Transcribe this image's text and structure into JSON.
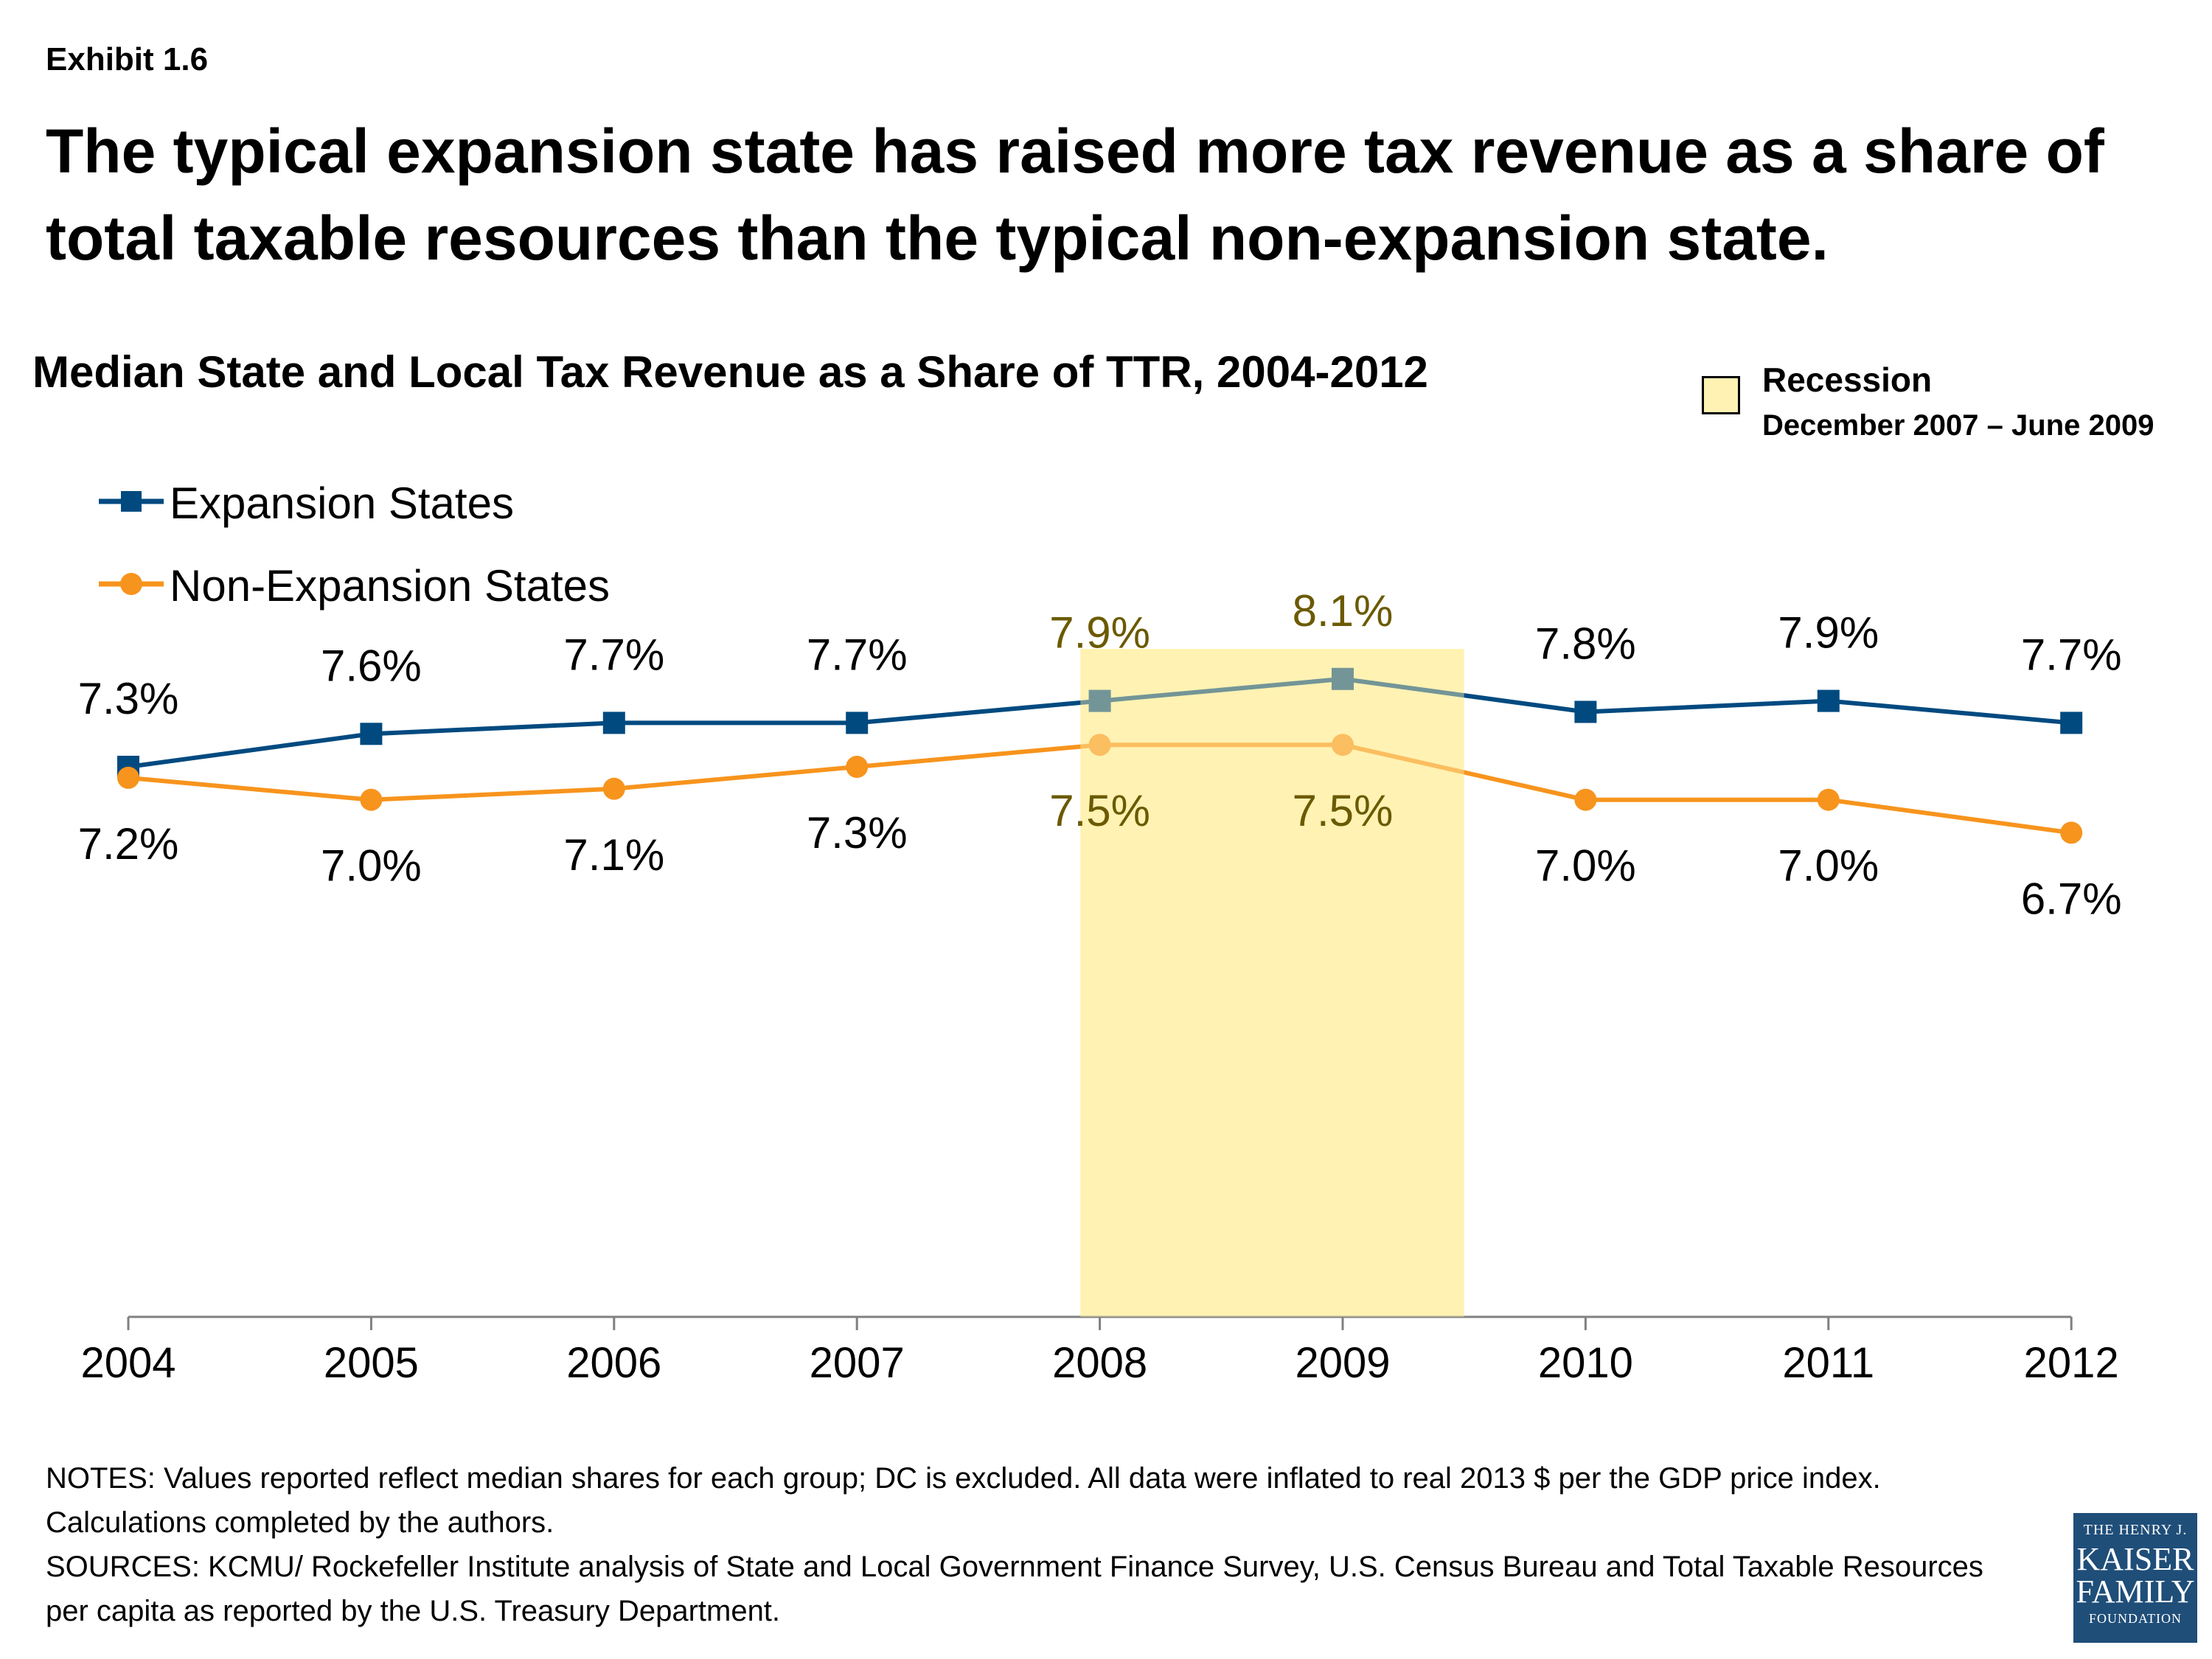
{
  "exhibit_label": "Exhibit 1.6",
  "headline": "The typical expansion state has raised more tax revenue as a share of total taxable resources than the typical non-expansion state.",
  "notes": {
    "line1": "NOTES: Values reported reflect median shares for each group; DC is excluded. All data were inflated to real 2013 $ per the GDP price index. Calculations completed by the authors.",
    "line2": "SOURCES: KCMU/ Rockefeller Institute analysis of State and Local Government Finance Survey, U.S. Census Bureau and Total Taxable Resources per capita as reported by the U.S. Treasury Department."
  },
  "logo": {
    "line1": "THE HENRY J.",
    "line2": "KAISER",
    "line3": "FAMILY",
    "line4": "FOUNDATION"
  },
  "chart_data": {
    "type": "line",
    "title": "Median State and Local Tax Revenue as a Share of TTR, 2004-2012",
    "categories": [
      "2004",
      "2005",
      "2006",
      "2007",
      "2008",
      "2009",
      "2010",
      "2011",
      "2012"
    ],
    "series": [
      {
        "name": "Expansion States",
        "values": [
          7.3,
          7.6,
          7.7,
          7.7,
          7.9,
          8.1,
          7.8,
          7.9,
          7.7
        ],
        "labels": [
          "7.3%",
          "7.6%",
          "7.7%",
          "7.7%",
          "7.9%",
          "8.1%",
          "7.8%",
          "7.9%",
          "7.7%"
        ],
        "color": "#004a80",
        "marker": "square"
      },
      {
        "name": "Non-Expansion States",
        "values": [
          7.2,
          7.0,
          7.1,
          7.3,
          7.5,
          7.5,
          7.0,
          7.0,
          6.7
        ],
        "labels": [
          "7.2%",
          "7.0%",
          "7.1%",
          "7.3%",
          "7.5%",
          "7.5%",
          "7.0%",
          "7.0%",
          "6.7%"
        ],
        "color": "#f7941d",
        "marker": "circle"
      }
    ],
    "shaded_region": {
      "label": "Recession",
      "range_label": "December 2007 – June 2009",
      "from": "December 2007",
      "to": "June 2009",
      "color": "#fff2b3"
    },
    "legend_position": "top-left",
    "grid": false,
    "y_axis_visible": false
  }
}
